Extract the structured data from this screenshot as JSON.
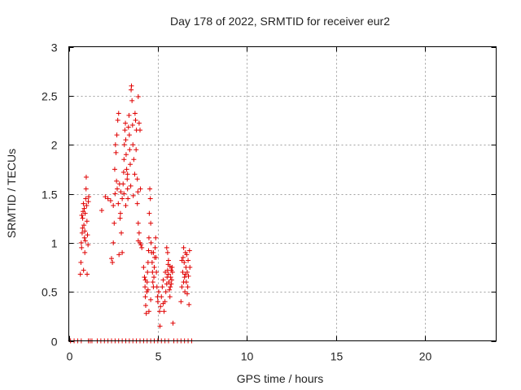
{
  "chart_data": {
    "type": "scatter",
    "title": "Day 178 of 2022, SRMTID for receiver eur2",
    "xlabel": "GPS time / hours",
    "ylabel": "SRMTID / TECUs",
    "xlim": [
      0,
      24
    ],
    "ylim": [
      0,
      3
    ],
    "xticks": [
      0,
      5,
      10,
      15,
      20
    ],
    "xtick_labels": [
      "0",
      "5",
      "10",
      "15",
      "20"
    ],
    "yticks": [
      0,
      0.5,
      1,
      1.5,
      2,
      2.5,
      3
    ],
    "ytick_labels": [
      "0",
      "0.5",
      "1",
      "1.5",
      "2",
      "2.5",
      "3"
    ],
    "grid": true,
    "marker": "+",
    "series": [
      {
        "name": "SRMTID",
        "color": "#e00000",
        "points": [
          [
            0.1,
            0
          ],
          [
            0.3,
            0
          ],
          [
            0.5,
            0
          ],
          [
            0.7,
            0
          ],
          [
            1.1,
            0
          ],
          [
            1.2,
            0
          ],
          [
            1.3,
            0
          ],
          [
            1.6,
            0
          ],
          [
            1.8,
            0
          ],
          [
            2.0,
            0
          ],
          [
            2.2,
            0
          ],
          [
            2.4,
            0
          ],
          [
            2.6,
            0
          ],
          [
            2.8,
            0
          ],
          [
            3.0,
            0
          ],
          [
            3.2,
            0
          ],
          [
            3.4,
            0
          ],
          [
            3.6,
            0
          ],
          [
            3.8,
            0
          ],
          [
            4.0,
            0
          ],
          [
            4.2,
            0
          ],
          [
            4.4,
            0
          ],
          [
            4.6,
            0
          ],
          [
            4.8,
            0
          ],
          [
            5.0,
            0
          ],
          [
            5.2,
            0
          ],
          [
            5.4,
            0
          ],
          [
            5.6,
            0
          ],
          [
            5.9,
            0
          ],
          [
            6.1,
            0
          ],
          [
            6.3,
            0
          ],
          [
            6.5,
            0
          ],
          [
            6.7,
            0
          ],
          [
            6.9,
            0
          ],
          [
            0.65,
            0.68
          ],
          [
            0.68,
            0.8
          ],
          [
            0.72,
            0.95
          ],
          [
            0.75,
            1.1
          ],
          [
            0.78,
            1.25
          ],
          [
            0.8,
            1.32
          ],
          [
            0.82,
            1.4
          ],
          [
            0.85,
            1.18
          ],
          [
            0.88,
            1.05
          ],
          [
            0.9,
            0.9
          ],
          [
            0.92,
            1.3
          ],
          [
            0.95,
            1.45
          ],
          [
            0.97,
            1.55
          ],
          [
            0.98,
            1.67
          ],
          [
            1.0,
            1.38
          ],
          [
            1.02,
            1.22
          ],
          [
            1.05,
            1.08
          ],
          [
            1.08,
            0.98
          ],
          [
            1.1,
            1.42
          ],
          [
            1.12,
            1.47
          ],
          [
            0.7,
            1.0
          ],
          [
            0.73,
            1.28
          ],
          [
            0.77,
            1.15
          ],
          [
            0.83,
            0.72
          ],
          [
            0.87,
            1.35
          ],
          [
            0.93,
            1.02
          ],
          [
            1.03,
            0.68
          ],
          [
            0.9,
            1.12
          ],
          [
            1.85,
            1.33
          ],
          [
            2.05,
            1.47
          ],
          [
            2.2,
            1.45
          ],
          [
            2.35,
            1.43
          ],
          [
            2.4,
            0.84
          ],
          [
            2.45,
            0.8
          ],
          [
            2.5,
            1.0
          ],
          [
            2.55,
            1.2
          ],
          [
            2.6,
            1.5
          ],
          [
            2.65,
            1.92
          ],
          [
            2.7,
            2.1
          ],
          [
            2.75,
            2.25
          ],
          [
            2.8,
            2.32
          ],
          [
            2.85,
            1.6
          ],
          [
            2.9,
            1.3
          ],
          [
            2.95,
            1.1
          ],
          [
            3.0,
            0.9
          ],
          [
            2.58,
            1.75
          ],
          [
            2.62,
            2.0
          ],
          [
            2.72,
            1.55
          ],
          [
            2.78,
            1.4
          ],
          [
            2.82,
            0.88
          ],
          [
            2.88,
            1.25
          ],
          [
            2.92,
            1.52
          ],
          [
            2.68,
            1.63
          ],
          [
            2.5,
            1.38
          ],
          [
            3.0,
            1.45
          ],
          [
            3.05,
            1.6
          ],
          [
            3.08,
            1.72
          ],
          [
            3.1,
            1.85
          ],
          [
            3.12,
            2.0
          ],
          [
            3.15,
            2.15
          ],
          [
            3.18,
            2.22
          ],
          [
            3.2,
            2.05
          ],
          [
            3.22,
            1.9
          ],
          [
            3.25,
            1.75
          ],
          [
            3.28,
            1.65
          ],
          [
            3.3,
            1.55
          ],
          [
            3.32,
            1.45
          ],
          [
            3.35,
            2.18
          ],
          [
            3.38,
            2.3
          ],
          [
            3.4,
            2.1
          ],
          [
            3.42,
            1.95
          ],
          [
            3.45,
            1.8
          ],
          [
            3.48,
            1.58
          ],
          [
            3.5,
            2.56
          ],
          [
            3.52,
            2.6
          ],
          [
            3.55,
            2.45
          ],
          [
            3.58,
            2.2
          ],
          [
            3.6,
            2.0
          ],
          [
            3.65,
            1.85
          ],
          [
            3.7,
            1.7
          ],
          [
            3.72,
            2.32
          ],
          [
            3.75,
            2.25
          ],
          [
            3.8,
            2.15
          ],
          [
            3.85,
            1.65
          ],
          [
            3.88,
            1.52
          ],
          [
            3.9,
            2.49
          ],
          [
            3.95,
            2.22
          ],
          [
            4.0,
            2.15
          ],
          [
            4.02,
            1.55
          ],
          [
            3.2,
            1.38
          ],
          [
            3.1,
            1.5
          ],
          [
            3.3,
            1.7
          ],
          [
            3.62,
            1.48
          ],
          [
            3.78,
            1.95
          ],
          [
            3.85,
            1.4
          ],
          [
            3.9,
            1.2
          ],
          [
            3.95,
            1.1
          ],
          [
            4.0,
            1.0
          ],
          [
            4.05,
            0.98
          ],
          [
            4.1,
            0.95
          ],
          [
            3.9,
            1.02
          ],
          [
            4.2,
            0.75
          ],
          [
            4.25,
            0.65
          ],
          [
            4.28,
            0.55
          ],
          [
            4.3,
            0.45
          ],
          [
            4.32,
            0.36
          ],
          [
            4.35,
            0.28
          ],
          [
            4.38,
            0.5
          ],
          [
            4.4,
            0.6
          ],
          [
            4.42,
            0.7
          ],
          [
            4.45,
            0.8
          ],
          [
            4.48,
            0.92
          ],
          [
            4.5,
            1.05
          ],
          [
            4.52,
            1.3
          ],
          [
            4.55,
            1.55
          ],
          [
            4.58,
            1.45
          ],
          [
            4.6,
            1.2
          ],
          [
            4.62,
            1.0
          ],
          [
            4.65,
            0.9
          ],
          [
            4.68,
            0.8
          ],
          [
            4.7,
            0.7
          ],
          [
            4.72,
            0.6
          ],
          [
            4.75,
            0.55
          ],
          [
            4.78,
            0.65
          ],
          [
            4.8,
            0.75
          ],
          [
            4.82,
            0.85
          ],
          [
            4.85,
            0.95
          ],
          [
            4.88,
            1.05
          ],
          [
            4.9,
            0.85
          ],
          [
            4.92,
            0.7
          ],
          [
            4.95,
            0.55
          ],
          [
            4.98,
            0.45
          ],
          [
            4.3,
            0.62
          ],
          [
            4.45,
            0.52
          ],
          [
            4.6,
            0.42
          ],
          [
            4.75,
            0.9
          ],
          [
            4.5,
            0.3
          ],
          [
            5.0,
            0.4
          ],
          [
            5.05,
            0.5
          ],
          [
            5.1,
            0.3
          ],
          [
            5.12,
            0.15
          ],
          [
            5.15,
            0.35
          ],
          [
            5.2,
            0.45
          ],
          [
            5.25,
            0.55
          ],
          [
            5.3,
            0.62
          ],
          [
            5.35,
            0.3
          ],
          [
            5.4,
            0.4
          ],
          [
            5.45,
            0.5
          ],
          [
            5.5,
            0.58
          ],
          [
            5.52,
            0.65
          ],
          [
            5.55,
            0.72
          ],
          [
            5.58,
            0.78
          ],
          [
            5.6,
            0.68
          ],
          [
            5.62,
            0.6
          ],
          [
            5.65,
            0.52
          ],
          [
            5.68,
            0.45
          ],
          [
            5.7,
            0.55
          ],
          [
            5.72,
            0.65
          ],
          [
            5.75,
            0.72
          ],
          [
            5.78,
            0.62
          ],
          [
            5.8,
            0.75
          ],
          [
            5.82,
            0.7
          ],
          [
            5.85,
            0.18
          ],
          [
            5.5,
            0.95
          ],
          [
            5.55,
            0.9
          ],
          [
            5.6,
            0.82
          ],
          [
            5.42,
            0.7
          ],
          [
            5.68,
            0.76
          ],
          [
            5.75,
            0.58
          ],
          [
            5.3,
            0.38
          ],
          [
            6.3,
            0.4
          ],
          [
            6.35,
            0.55
          ],
          [
            6.4,
            0.7
          ],
          [
            6.42,
            0.85
          ],
          [
            6.45,
            0.95
          ],
          [
            6.48,
            0.8
          ],
          [
            6.5,
            0.65
          ],
          [
            6.52,
            0.5
          ],
          [
            6.55,
            0.9
          ],
          [
            6.58,
            0.75
          ],
          [
            6.6,
            0.6
          ],
          [
            6.62,
            0.88
          ],
          [
            6.65,
            0.7
          ],
          [
            6.68,
            0.55
          ],
          [
            6.7,
            0.82
          ],
          [
            6.72,
            0.66
          ],
          [
            6.75,
            0.37
          ],
          [
            6.78,
            0.92
          ],
          [
            6.8,
            0.75
          ],
          [
            6.35,
            0.82
          ],
          [
            6.45,
            0.6
          ],
          [
            6.55,
            0.68
          ],
          [
            6.65,
            0.48
          ]
        ]
      }
    ]
  }
}
